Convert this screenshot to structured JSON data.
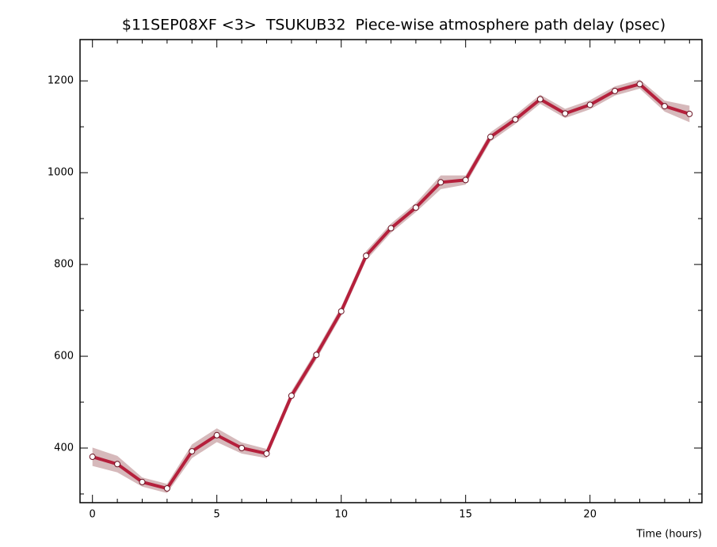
{
  "chart_data": {
    "type": "line",
    "title": "$11SEP08XF <3>  TSUKUB32  Piece-wise atmosphere path delay (psec)",
    "x_label": "Time (hours)",
    "x": [
      0,
      1,
      2,
      3,
      4,
      5,
      6,
      7,
      8,
      9,
      10,
      11,
      12,
      13,
      14,
      15,
      16,
      17,
      18,
      19,
      20,
      21,
      22,
      23,
      24
    ],
    "series": [
      {
        "color": "#b5203c",
        "band_color": "#d6b9bb",
        "values": [
          381,
          365,
          326,
          312,
          393,
          428,
          400,
          388,
          514,
          603,
          698,
          819,
          879,
          924,
          979,
          984,
          1078,
          1116,
          1160,
          1129,
          1148,
          1178,
          1193,
          1145,
          1128
        ],
        "errors": [
          20,
          18,
          10,
          10,
          15,
          15,
          12,
          10,
          10,
          10,
          10,
          10,
          10,
          10,
          15,
          10,
          10,
          10,
          10,
          10,
          10,
          10,
          10,
          12,
          18
        ]
      }
    ],
    "xlim": [
      -0.5,
      24.5
    ],
    "xticks": [
      0,
      5,
      10,
      15,
      20
    ],
    "xminorticks": [
      1,
      2,
      3,
      4,
      6,
      7,
      8,
      9,
      11,
      12,
      13,
      14,
      16,
      17,
      18,
      19,
      21,
      22,
      23,
      24
    ],
    "ylim": [
      281,
      1290
    ],
    "yticks": [
      400,
      600,
      800,
      1000,
      1200
    ],
    "yminorticks": [
      300,
      500,
      700,
      900,
      1100
    ]
  }
}
